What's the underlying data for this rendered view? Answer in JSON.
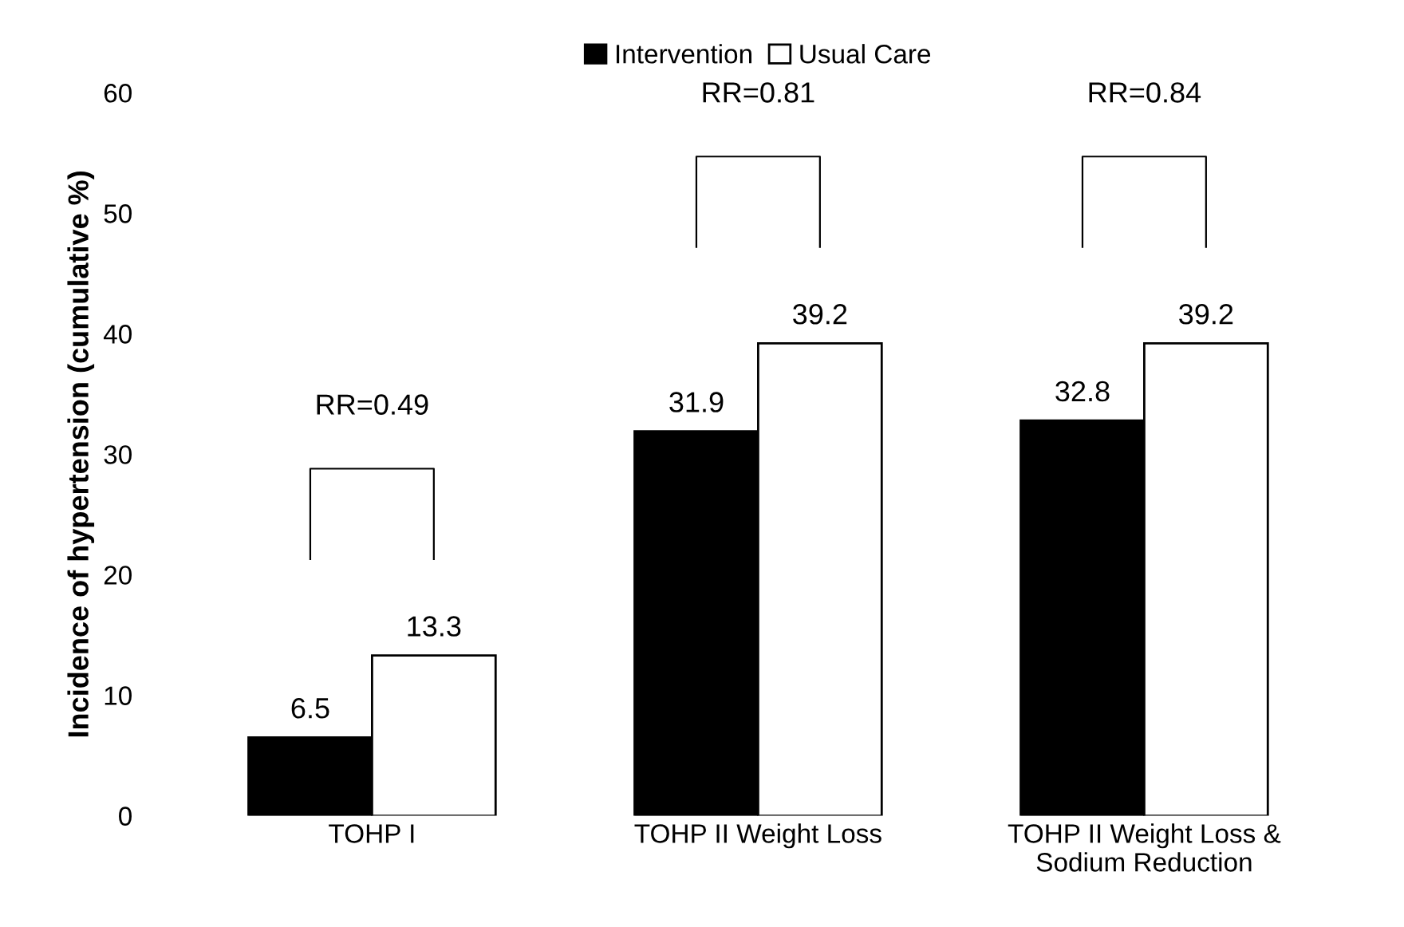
{
  "chart_data": {
    "type": "bar",
    "ylabel": "Incidence of hypertension (cumulative %)",
    "categories": [
      "TOHP I",
      "TOHP II Weight Loss",
      "TOHP II Weight Loss &\nSodium Reduction"
    ],
    "series": [
      {
        "name": "Intervention",
        "color": "#000000",
        "values": [
          6.5,
          31.9,
          32.8
        ]
      },
      {
        "name": "Usual Care",
        "color": "#ffffff",
        "values": [
          13.3,
          39.2,
          39.2
        ]
      }
    ],
    "ylim": [
      0,
      60
    ],
    "yticks": [
      0,
      10,
      20,
      30,
      40,
      50,
      60
    ],
    "data_labels": true,
    "legend": "top",
    "grid": false,
    "annotations": [
      "RR=0.49",
      "RR=0.81",
      "RR=0.84"
    ]
  }
}
